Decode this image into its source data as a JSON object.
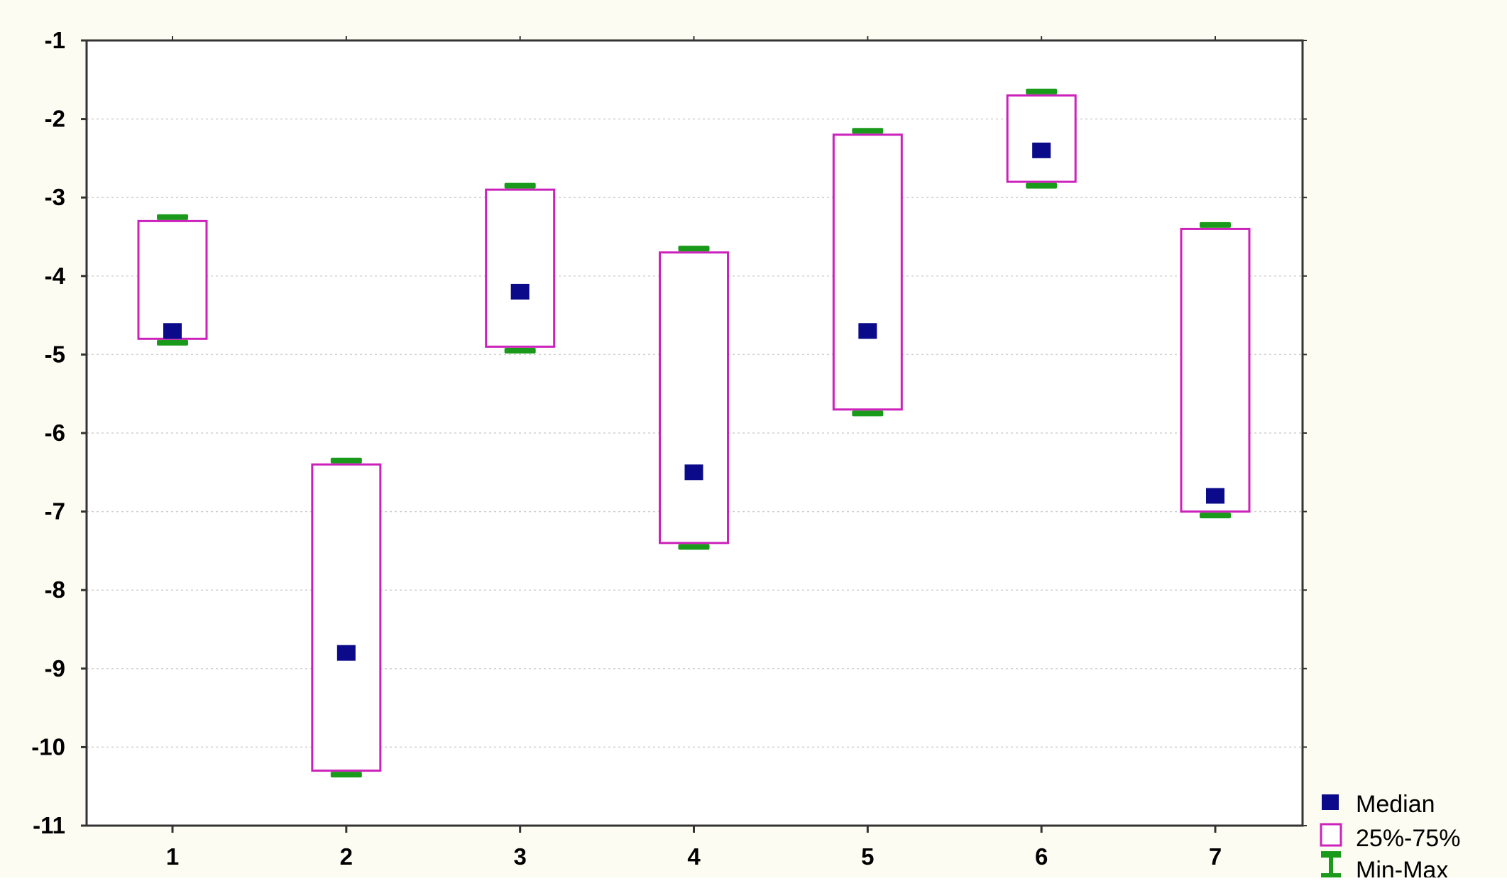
{
  "chart_data": {
    "type": "box",
    "title": "",
    "xlabel": "",
    "ylabel": "",
    "categories": [
      "1",
      "2",
      "3",
      "4",
      "5",
      "6",
      "7"
    ],
    "ylim": [
      -11,
      -1
    ],
    "yticks": [
      "-1",
      "-2",
      "-3",
      "-4",
      "-5",
      "-6",
      "-7",
      "-8",
      "-9",
      "-10",
      "-11"
    ],
    "grid": true,
    "legend_position": "bottom-right",
    "series": [
      {
        "name": "Median",
        "values": [
          -4.7,
          -8.8,
          -4.2,
          -6.5,
          -4.7,
          -2.4,
          -6.8
        ]
      },
      {
        "name": "25%-75%",
        "q1": [
          -4.8,
          -10.3,
          -4.9,
          -7.4,
          -5.7,
          -2.8,
          -7.0
        ],
        "q3": [
          -3.3,
          -6.4,
          -2.9,
          -3.7,
          -2.2,
          -1.7,
          -3.4
        ]
      },
      {
        "name": "Min-Max",
        "min": [
          -4.85,
          -10.35,
          -4.95,
          -7.45,
          -5.75,
          -2.85,
          -7.05
        ],
        "max": [
          -3.25,
          -6.35,
          -2.85,
          -3.65,
          -2.15,
          -1.65,
          -3.35
        ]
      }
    ],
    "legend": [
      "Median",
      "25%-75%",
      "Min-Max"
    ],
    "colors": {
      "background": "#fdfcf2",
      "plot_bg": "#ffffff",
      "axis": "#333333",
      "grid": "#d0d0d0",
      "median": "#0a0a8a",
      "box": "#cc22bb",
      "whisker": "#1a9a1a",
      "text": "#000000"
    }
  }
}
